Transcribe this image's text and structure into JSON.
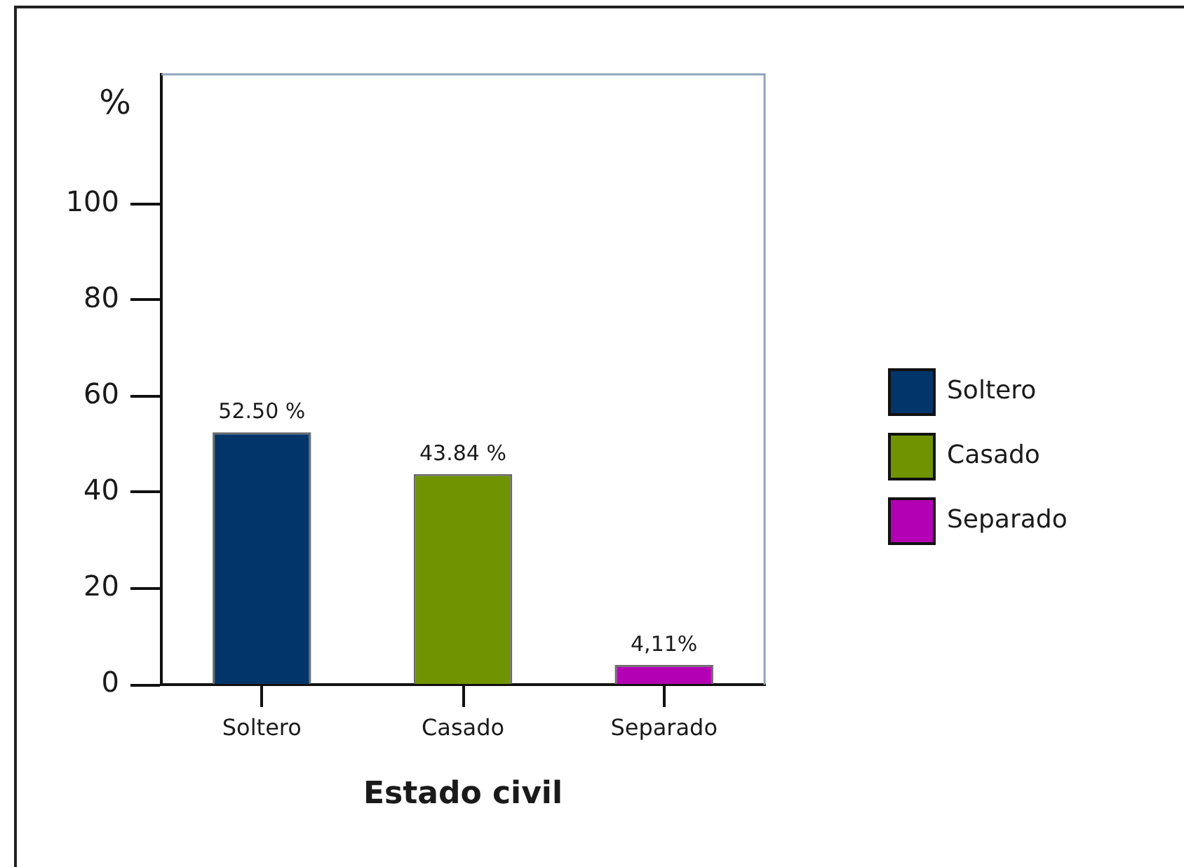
{
  "chart_data": {
    "type": "bar",
    "categories": [
      "Soltero",
      "Casado",
      "Separado"
    ],
    "series": [
      {
        "name": "Soltero",
        "color": "#02356a",
        "values": [
          52.5,
          null,
          null
        ],
        "value_labels": [
          "52.50 %",
          null,
          null
        ]
      },
      {
        "name": "Casado",
        "color": "#6f9400",
        "values": [
          null,
          43.84,
          null
        ],
        "value_labels": [
          null,
          "43.84 %",
          null
        ]
      },
      {
        "name": "Separado",
        "color": "#b400b4",
        "values": [
          null,
          null,
          4.11
        ],
        "value_labels": [
          null,
          null,
          "4,11%"
        ]
      }
    ],
    "xlabel": "Estado civil",
    "ylabel": "%",
    "ylim": [
      0,
      127
    ],
    "yticks": [
      0,
      20,
      40,
      60,
      80,
      100
    ],
    "grid": false,
    "legend": "right"
  }
}
